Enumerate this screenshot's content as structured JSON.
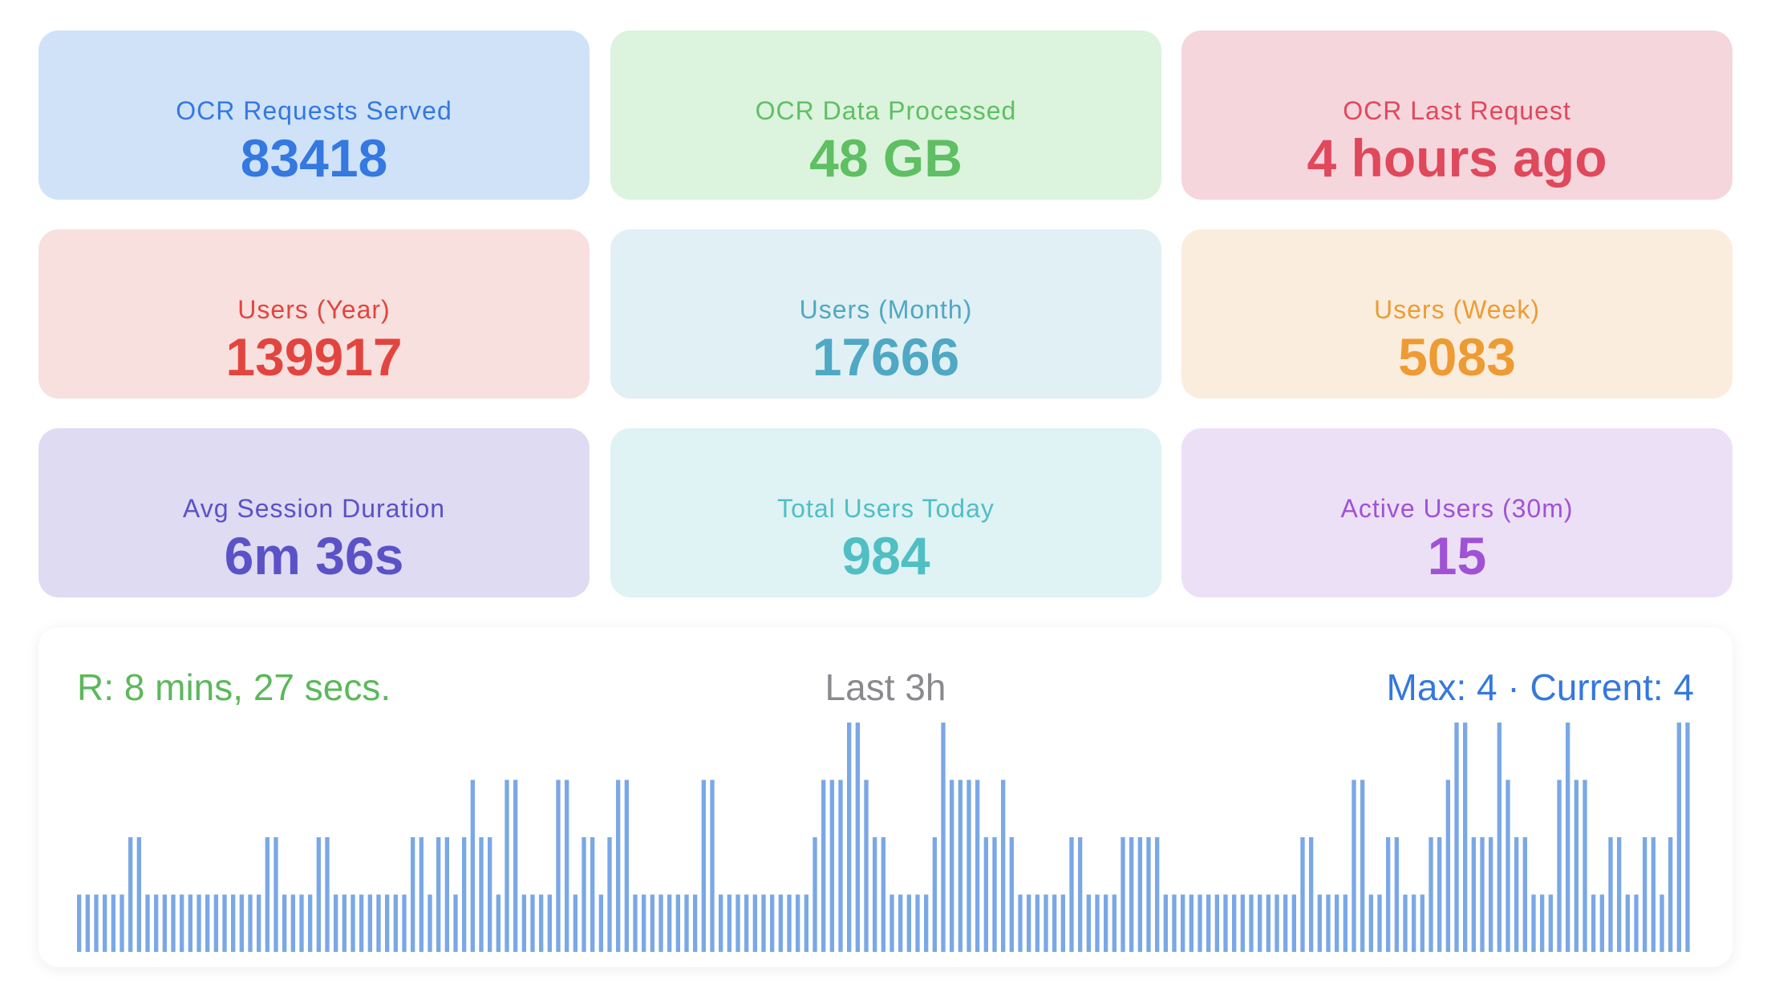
{
  "cards": [
    {
      "label": "OCR Requests Served",
      "value": "83418",
      "bg": "#cfe2f8",
      "fg": "#3478e0"
    },
    {
      "label": "OCR Data Processed",
      "value": "48 GB",
      "bg": "#dcf3dd",
      "fg": "#5fbf63"
    },
    {
      "label": "OCR Last Request",
      "value": "4 hours ago",
      "bg": "#f5d6dc",
      "fg": "#e0485c"
    },
    {
      "label": "Users (Year)",
      "value": "139917",
      "bg": "#f7e0de",
      "fg": "#e2453f"
    },
    {
      "label": "Users (Month)",
      "value": "17666",
      "bg": "#e1f0f4",
      "fg": "#4fa8c4"
    },
    {
      "label": "Users (Week)",
      "value": "5083",
      "bg": "#fbeddd",
      "fg": "#ee9b33"
    },
    {
      "label": "Avg Session Duration",
      "value": "6m 36s",
      "bg": "#dedbf3",
      "fg": "#5a52c6"
    },
    {
      "label": "Total Users Today",
      "value": "984",
      "bg": "#dff2f4",
      "fg": "#4fbfc4"
    },
    {
      "label": "Active Users (30m)",
      "value": "15",
      "bg": "#ece0f6",
      "fg": "#a052d6"
    }
  ],
  "activity": {
    "response_time": "R: 8 mins, 27 secs.",
    "window": "Last 3h",
    "max_current": "Max: 4 · Current: 4",
    "colors": {
      "response_time": "#5cb85c",
      "window": "#8a8a8e",
      "max_current": "#3478e0",
      "bars": "#7aa8e6"
    }
  },
  "chart_data": {
    "type": "bar",
    "ylim": [
      0,
      4
    ],
    "values": [
      1,
      1,
      1,
      1,
      1,
      1,
      2,
      2,
      1,
      1,
      1,
      1,
      1,
      1,
      1,
      1,
      1,
      1,
      1,
      1,
      1,
      1,
      2,
      2,
      1,
      1,
      1,
      1,
      2,
      2,
      1,
      1,
      1,
      1,
      1,
      1,
      1,
      1,
      1,
      2,
      2,
      1,
      2,
      2,
      1,
      2,
      3,
      2,
      2,
      1,
      3,
      3,
      1,
      1,
      1,
      1,
      3,
      3,
      1,
      2,
      2,
      1,
      2,
      3,
      3,
      1,
      1,
      1,
      1,
      1,
      1,
      1,
      1,
      3,
      3,
      1,
      1,
      1,
      1,
      1,
      1,
      1,
      1,
      1,
      1,
      1,
      2,
      3,
      3,
      3,
      4,
      4,
      3,
      2,
      2,
      1,
      1,
      1,
      1,
      1,
      2,
      4,
      3,
      3,
      3,
      3,
      2,
      2,
      3,
      2,
      1,
      1,
      1,
      1,
      1,
      1,
      2,
      2,
      1,
      1,
      1,
      1,
      2,
      2,
      2,
      2,
      2,
      1,
      1,
      1,
      1,
      1,
      1,
      1,
      1,
      1,
      1,
      1,
      1,
      1,
      1,
      1,
      1,
      2,
      2,
      1,
      1,
      1,
      1,
      3,
      3,
      1,
      1,
      2,
      2,
      1,
      1,
      1,
      2,
      2,
      3,
      4,
      4,
      2,
      2,
      2,
      4,
      3,
      2,
      2,
      1,
      1,
      1,
      3,
      4,
      3,
      3,
      1,
      1,
      2,
      2,
      1,
      1,
      2,
      2,
      1,
      2,
      4,
      4
    ]
  }
}
